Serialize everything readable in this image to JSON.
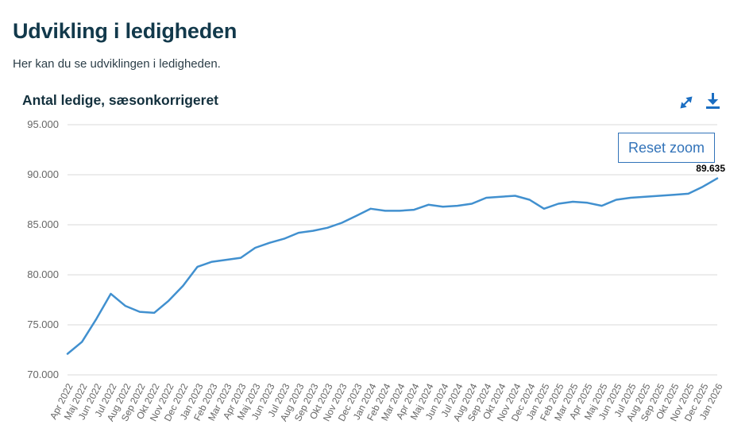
{
  "page": {
    "title": "Udvikling i ledigheden",
    "subtitle": "Her kan du se udviklingen i ledigheden."
  },
  "chart": {
    "title": "Antal ledige, sæsonkorrigeret",
    "reset_zoom_label": "Reset zoom",
    "last_point_label": "89.635",
    "icons": [
      "expand-icon",
      "download-icon"
    ],
    "colors": {
      "line": "#4190cf",
      "icon_blue": "#1b6ec2",
      "button_blue": "#3273b9",
      "grid": "#d8d8d8",
      "heading": "#12394b",
      "axis_text": "#666666"
    }
  },
  "chart_data": {
    "type": "line",
    "title": "Antal ledige, sæsonkorrigeret",
    "x": [
      "Apr 2022",
      "Maj 2022",
      "Jun 2022",
      "Jul 2022",
      "Aug 2022",
      "Sep 2022",
      "Okt 2022",
      "Nov 2022",
      "Dec 2022",
      "Jan 2023",
      "Feb 2023",
      "Mar 2023",
      "Apr 2023",
      "Maj 2023",
      "Jun 2023",
      "Jul 2023",
      "Aug 2023",
      "Sep 2023",
      "Okt 2023",
      "Nov 2023",
      "Dec 2023",
      "Jan 2024",
      "Feb 2024",
      "Mar 2024",
      "Apr 2024",
      "Maj 2024",
      "Jun 2024",
      "Jul 2024",
      "Aug 2024",
      "Sep 2024",
      "Okt 2024",
      "Nov 2024",
      "Dec 2024",
      "Jan 2025",
      "Feb 2025",
      "Mar 2025",
      "Apr 2025",
      "Maj 2025",
      "Jun 2025",
      "Jul 2025",
      "Aug 2025",
      "Sep 2025",
      "Okt 2025",
      "Nov 2025",
      "Dec 2025",
      "Jan 2026"
    ],
    "series": [
      {
        "name": "Antal ledige, sæsonkorrigeret",
        "values": [
          72100,
          73300,
          75600,
          78100,
          76900,
          76300,
          76200,
          77400,
          78900,
          80800,
          81300,
          81500,
          81700,
          82700,
          83200,
          83600,
          84200,
          84400,
          84700,
          85200,
          85900,
          86600,
          86400,
          86400,
          86500,
          87000,
          86800,
          86900,
          87100,
          87700,
          87800,
          87900,
          87500,
          86600,
          87100,
          87300,
          87200,
          86900,
          87500,
          87700,
          87800,
          87900,
          88000,
          88100,
          88800,
          89635
        ]
      }
    ],
    "ylim": [
      70000,
      95000
    ],
    "ytick_step": 5000,
    "yticks": [
      "70.000",
      "75.000",
      "80.000",
      "85.000",
      "90.000",
      "95.000"
    ],
    "xlabel": "",
    "ylabel": "",
    "grid": true,
    "legend": "none",
    "annotations": [
      {
        "x": "Jan 2026",
        "label": "89.635"
      }
    ]
  }
}
